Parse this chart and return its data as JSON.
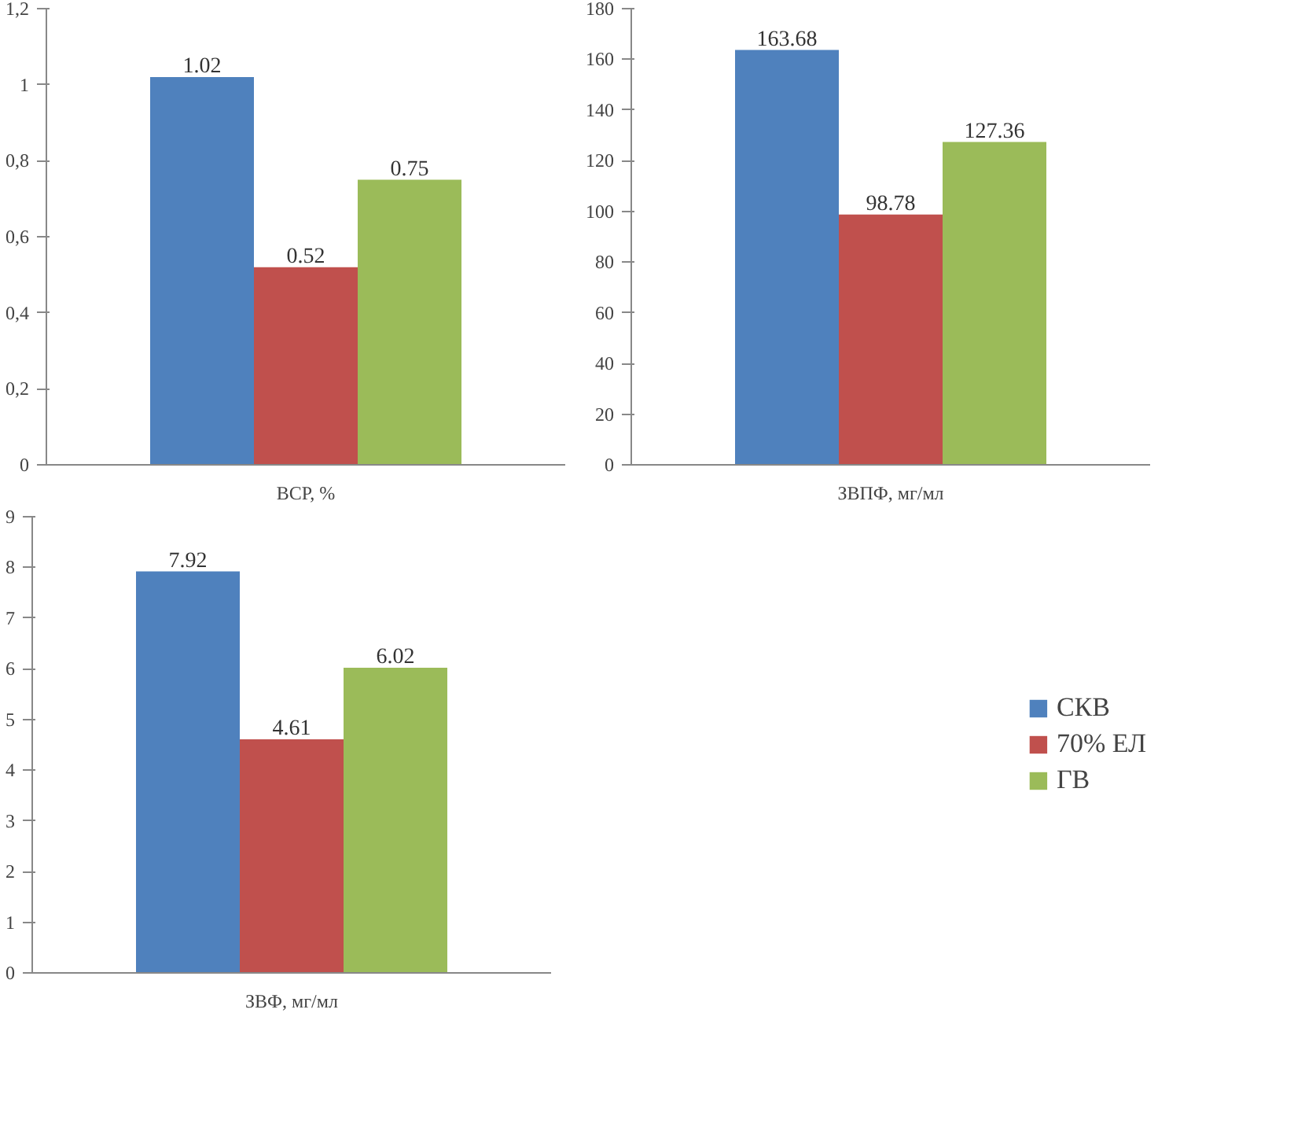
{
  "chart_data": [
    {
      "type": "bar",
      "categories": [
        "ВСР, %"
      ],
      "series": [
        {
          "color": "#4f81bd",
          "values": [
            1.02
          ]
        },
        {
          "color": "#c0504d",
          "values": [
            0.52
          ]
        },
        {
          "color": "#9bbb59",
          "values": [
            0.75
          ]
        }
      ],
      "ylim": [
        0,
        1.2
      ],
      "yticks": [
        0,
        {
          "value": 0.2,
          "label": "0,2"
        },
        {
          "value": 0.4,
          "label": "0,4"
        },
        {
          "value": 0.6,
          "label": "0,6"
        },
        {
          "value": 0.8,
          "label": "0,8"
        },
        1,
        {
          "value": 1.2,
          "label": "1,2"
        }
      ],
      "data_labels": true,
      "grid": false
    },
    {
      "type": "bar",
      "categories": [
        "ЗВПФ, мг/мл"
      ],
      "series": [
        {
          "color": "#4f81bd",
          "values": [
            163.68
          ]
        },
        {
          "color": "#c0504d",
          "values": [
            98.78
          ]
        },
        {
          "color": "#9bbb59",
          "values": [
            127.36
          ]
        }
      ],
      "ylim": [
        0,
        180
      ],
      "yticks": [
        0,
        20,
        40,
        60,
        80,
        100,
        120,
        140,
        160,
        180
      ],
      "data_labels": true,
      "grid": false
    },
    {
      "type": "bar",
      "categories": [
        "ЗВФ, мг/мл"
      ],
      "series": [
        {
          "name": "СКВ",
          "color": "#4f81bd",
          "values": [
            7.92
          ]
        },
        {
          "name": "70% ЕЛ",
          "color": "#c0504d",
          "values": [
            4.61
          ]
        },
        {
          "name": "ГВ",
          "color": "#9bbb59",
          "values": [
            6.02
          ]
        }
      ],
      "ylim": [
        0,
        9
      ],
      "yticks": [
        0,
        1,
        2,
        3,
        4,
        5,
        6,
        7,
        8,
        9
      ],
      "data_labels": true,
      "grid": false,
      "legend": "right"
    }
  ]
}
